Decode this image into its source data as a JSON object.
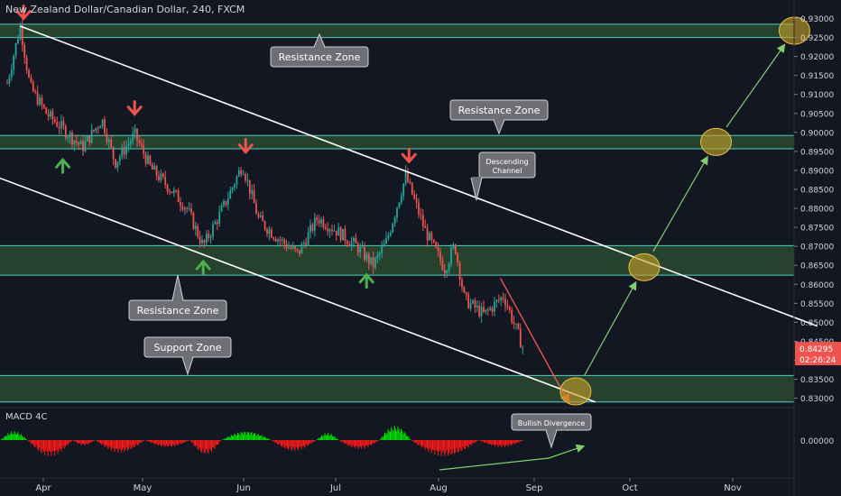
{
  "header": {
    "title": "New Zealand Dollar/Canadian Dollar, 240, FXCM"
  },
  "colors": {
    "background": "#131722",
    "zone_fill": "#2a4a2f",
    "zone_line": "#4fd1c5",
    "up": "#26a69a",
    "down": "#ef5350",
    "macd_up": "#00e600",
    "macd_down": "#ff1a1a",
    "channel": "#ffffff",
    "projection": "#7fcf6f",
    "circle": "#c9a227",
    "price_tag": "#ef5350"
  },
  "price_axis": {
    "ticks": [
      "0.93000",
      "0.92500",
      "0.92000",
      "0.91500",
      "0.91000",
      "0.90500",
      "0.90000",
      "0.89500",
      "0.89000",
      "0.88500",
      "0.88000",
      "0.87500",
      "0.87000",
      "0.86500",
      "0.86000",
      "0.85500",
      "0.85000",
      "0.84500",
      "0.84000",
      "0.83500",
      "0.83000"
    ],
    "current_price": "0.84295",
    "countdown": "02:26:24"
  },
  "macd": {
    "label": "MACD 4C",
    "zero_tick": "0.00000"
  },
  "time_axis": {
    "labels": [
      "Apr",
      "May",
      "Jun",
      "Jul",
      "Aug",
      "Sep",
      "Oct",
      "Nov"
    ]
  },
  "annotations": {
    "resistance_top": "Resistance Zone",
    "resistance_mid": "Resistance Zone",
    "resistance_low": "Resistance Zone",
    "support": "Support Zone",
    "channel_line1": "Descending",
    "channel_line2": "Channel",
    "divergence": "Bullish Divergence"
  },
  "chart_data": {
    "type": "candlestick",
    "symbol": "New Zealand Dollar/Canadian Dollar",
    "timeframe": "240",
    "ylim": [
      0.828,
      0.9325
    ],
    "zones": [
      {
        "name": "Resistance Zone",
        "low": 0.925,
        "high": 0.9285
      },
      {
        "name": "Resistance Zone",
        "low": 0.8957,
        "high": 0.8992
      },
      {
        "name": "Resistance Zone",
        "low": 0.8624,
        "high": 0.8702
      },
      {
        "name": "Support Zone",
        "low": 0.829,
        "high": 0.836
      }
    ],
    "price_path": [
      [
        "Mar 22",
        0.913
      ],
      [
        "Mar 26",
        0.928
      ],
      [
        "Mar 29",
        0.912
      ],
      [
        "Apr 3",
        0.905
      ],
      [
        "Apr 8",
        0.901
      ],
      [
        "Apr 14",
        0.896
      ],
      [
        "Apr 20",
        0.9035
      ],
      [
        "Apr 24",
        0.892
      ],
      [
        "Apr 30",
        0.8995
      ],
      [
        "May 5",
        0.8905
      ],
      [
        "May 10",
        0.886
      ],
      [
        "May 16",
        0.88
      ],
      [
        "May 21",
        0.87
      ],
      [
        "May 27",
        0.88
      ],
      [
        "Jun 2",
        0.8915
      ],
      [
        "Jun 7",
        0.877
      ],
      [
        "Jun 13",
        0.872
      ],
      [
        "Jun 19",
        0.868
      ],
      [
        "Jun 25",
        0.8775
      ],
      [
        "Jul 1",
        0.874
      ],
      [
        "Jul 7",
        0.87
      ],
      [
        "Jul 12",
        0.865
      ],
      [
        "Jul 16",
        0.871
      ],
      [
        "Jul 22",
        0.8885
      ],
      [
        "Jul 28",
        0.874
      ],
      [
        "Aug 3",
        0.864
      ],
      [
        "Aug 6",
        0.8705
      ],
      [
        "Aug 9",
        0.856
      ],
      [
        "Aug 15",
        0.852
      ],
      [
        "Aug 21",
        0.857
      ],
      [
        "Aug 27",
        0.843
      ]
    ],
    "channel_upper": [
      [
        "Mar 26",
        0.928
      ],
      [
        "Nov 25",
        0.849
      ]
    ],
    "channel_lower": [
      [
        "Mar 15",
        0.8895
      ],
      [
        "Sep 18",
        0.829
      ]
    ],
    "projection_points": [
      [
        "Sep 12",
        0.8318
      ],
      [
        "Oct 3",
        0.8645
      ],
      [
        "Oct 25",
        0.8975
      ],
      [
        "Nov 18",
        0.9268
      ]
    ]
  }
}
